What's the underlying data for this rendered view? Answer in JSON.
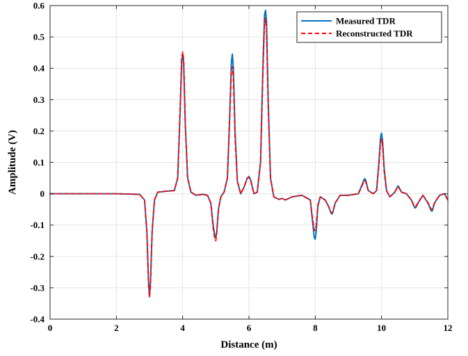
{
  "chart_data": {
    "type": "line",
    "title": "",
    "xlabel": "Distance (m)",
    "ylabel": "Amplitude (V)",
    "xlim": [
      0,
      12
    ],
    "ylim": [
      -0.4,
      0.6
    ],
    "x_ticks": [
      0,
      2,
      4,
      6,
      8,
      10,
      12
    ],
    "x_tick_labels": [
      "0",
      "2",
      "4",
      "6",
      "8",
      "10",
      "12"
    ],
    "y_ticks": [
      -0.4,
      -0.3,
      -0.2,
      -0.1,
      0,
      0.1,
      0.2,
      0.3,
      0.4,
      0.5,
      0.6
    ],
    "y_tick_labels": [
      "-0.4",
      "-0.3",
      "-0.2",
      "-0.1",
      "0",
      "0.1",
      "0.2",
      "0.3",
      "0.4",
      "0.5",
      "0.6"
    ],
    "grid": true,
    "legend_position": "top-right",
    "series": [
      {
        "name": "Measured TDR",
        "color": "#0072BD",
        "style": "solid",
        "x": [
          0,
          1.0,
          2.0,
          2.7,
          2.85,
          2.92,
          2.97,
          3.0,
          3.03,
          3.08,
          3.15,
          3.25,
          3.5,
          3.75,
          3.85,
          3.92,
          3.97,
          4.0,
          4.03,
          4.08,
          4.15,
          4.25,
          4.4,
          4.6,
          4.75,
          4.85,
          4.92,
          4.97,
          5.0,
          5.03,
          5.08,
          5.15,
          5.25,
          5.35,
          5.42,
          5.47,
          5.5,
          5.53,
          5.58,
          5.65,
          5.75,
          5.85,
          5.95,
          6.0,
          6.05,
          6.15,
          6.25,
          6.35,
          6.42,
          6.47,
          6.5,
          6.53,
          6.58,
          6.65,
          6.75,
          6.9,
          7.0,
          7.1,
          7.3,
          7.6,
          7.85,
          7.92,
          7.97,
          8.0,
          8.03,
          8.08,
          8.15,
          8.3,
          8.4,
          8.47,
          8.5,
          8.53,
          8.6,
          8.75,
          9.0,
          9.3,
          9.4,
          9.47,
          9.5,
          9.53,
          9.6,
          9.75,
          9.85,
          9.92,
          9.97,
          10.0,
          10.03,
          10.08,
          10.15,
          10.25,
          10.4,
          10.47,
          10.5,
          10.53,
          10.6,
          10.75,
          10.9,
          11.0,
          11.03,
          11.1,
          11.25,
          11.4,
          11.5,
          11.53,
          11.6,
          11.75,
          11.9,
          12.0
        ],
        "y": [
          0,
          0,
          0,
          -0.002,
          -0.02,
          -0.12,
          -0.28,
          -0.325,
          -0.28,
          -0.12,
          -0.02,
          0.005,
          0.008,
          0.01,
          0.05,
          0.25,
          0.42,
          0.445,
          0.42,
          0.22,
          0.05,
          0.005,
          -0.005,
          -0.002,
          -0.005,
          -0.03,
          -0.1,
          -0.135,
          -0.14,
          -0.12,
          -0.05,
          -0.01,
          0.005,
          0.05,
          0.25,
          0.42,
          0.445,
          0.4,
          0.2,
          0.04,
          0.0,
          0.02,
          0.05,
          0.055,
          0.045,
          0.0,
          0.005,
          0.1,
          0.4,
          0.57,
          0.585,
          0.55,
          0.3,
          0.05,
          -0.01,
          -0.018,
          -0.015,
          -0.02,
          -0.01,
          -0.005,
          -0.02,
          -0.09,
          -0.14,
          -0.145,
          -0.12,
          -0.04,
          -0.01,
          -0.02,
          -0.04,
          -0.06,
          -0.065,
          -0.06,
          -0.03,
          -0.005,
          -0.005,
          0.0,
          0.025,
          0.045,
          0.048,
          0.04,
          0.01,
          0.0,
          0.01,
          0.1,
          0.18,
          0.193,
          0.17,
          0.08,
          0.01,
          -0.01,
          0.005,
          0.02,
          0.025,
          0.02,
          0.005,
          0.0,
          -0.02,
          -0.045,
          -0.045,
          -0.03,
          -0.005,
          -0.03,
          -0.055,
          -0.055,
          -0.03,
          -0.005,
          0.0,
          -0.02
        ]
      },
      {
        "name": "Reconstructed TDR",
        "color": "#FF0000",
        "style": "dashed",
        "x": [
          0,
          1.0,
          2.0,
          2.7,
          2.85,
          2.92,
          2.97,
          3.0,
          3.03,
          3.08,
          3.15,
          3.25,
          3.5,
          3.75,
          3.85,
          3.92,
          3.97,
          4.0,
          4.03,
          4.08,
          4.15,
          4.25,
          4.4,
          4.6,
          4.75,
          4.85,
          4.92,
          4.97,
          5.0,
          5.03,
          5.08,
          5.15,
          5.25,
          5.35,
          5.42,
          5.47,
          5.5,
          5.53,
          5.58,
          5.65,
          5.75,
          5.85,
          5.95,
          6.0,
          6.05,
          6.15,
          6.25,
          6.35,
          6.42,
          6.47,
          6.5,
          6.53,
          6.58,
          6.65,
          6.75,
          6.9,
          7.0,
          7.1,
          7.3,
          7.6,
          7.85,
          7.92,
          7.97,
          8.0,
          8.03,
          8.08,
          8.15,
          8.3,
          8.4,
          8.47,
          8.5,
          8.53,
          8.6,
          8.75,
          9.0,
          9.3,
          9.4,
          9.47,
          9.5,
          9.53,
          9.6,
          9.75,
          9.85,
          9.92,
          9.97,
          10.0,
          10.03,
          10.08,
          10.15,
          10.25,
          10.4,
          10.47,
          10.5,
          10.53,
          10.6,
          10.75,
          10.9,
          11.0,
          11.03,
          11.1,
          11.25,
          11.4,
          11.5,
          11.53,
          11.6,
          11.75,
          11.9,
          12.0
        ],
        "y": [
          0,
          0,
          0,
          -0.002,
          -0.02,
          -0.12,
          -0.29,
          -0.33,
          -0.29,
          -0.12,
          -0.02,
          0.005,
          0.008,
          0.01,
          0.05,
          0.26,
          0.43,
          0.452,
          0.43,
          0.22,
          0.05,
          0.005,
          -0.005,
          -0.002,
          -0.005,
          -0.03,
          -0.11,
          -0.145,
          -0.15,
          -0.125,
          -0.05,
          -0.01,
          0.005,
          0.05,
          0.24,
          0.39,
          0.405,
          0.37,
          0.18,
          0.04,
          0.0,
          0.02,
          0.05,
          0.052,
          0.042,
          0.0,
          0.005,
          0.1,
          0.38,
          0.545,
          0.56,
          0.52,
          0.28,
          0.05,
          -0.01,
          -0.018,
          -0.015,
          -0.02,
          -0.01,
          -0.005,
          -0.02,
          -0.08,
          -0.115,
          -0.118,
          -0.1,
          -0.035,
          -0.01,
          -0.02,
          -0.04,
          -0.058,
          -0.062,
          -0.058,
          -0.03,
          -0.005,
          -0.005,
          0.0,
          0.022,
          0.04,
          0.042,
          0.035,
          0.01,
          0.0,
          0.01,
          0.09,
          0.165,
          0.175,
          0.155,
          0.07,
          0.01,
          -0.01,
          0.005,
          0.018,
          0.022,
          0.018,
          0.005,
          0.0,
          -0.02,
          -0.042,
          -0.042,
          -0.028,
          -0.005,
          -0.028,
          -0.05,
          -0.05,
          -0.028,
          -0.005,
          0.0,
          -0.02
        ]
      }
    ]
  }
}
